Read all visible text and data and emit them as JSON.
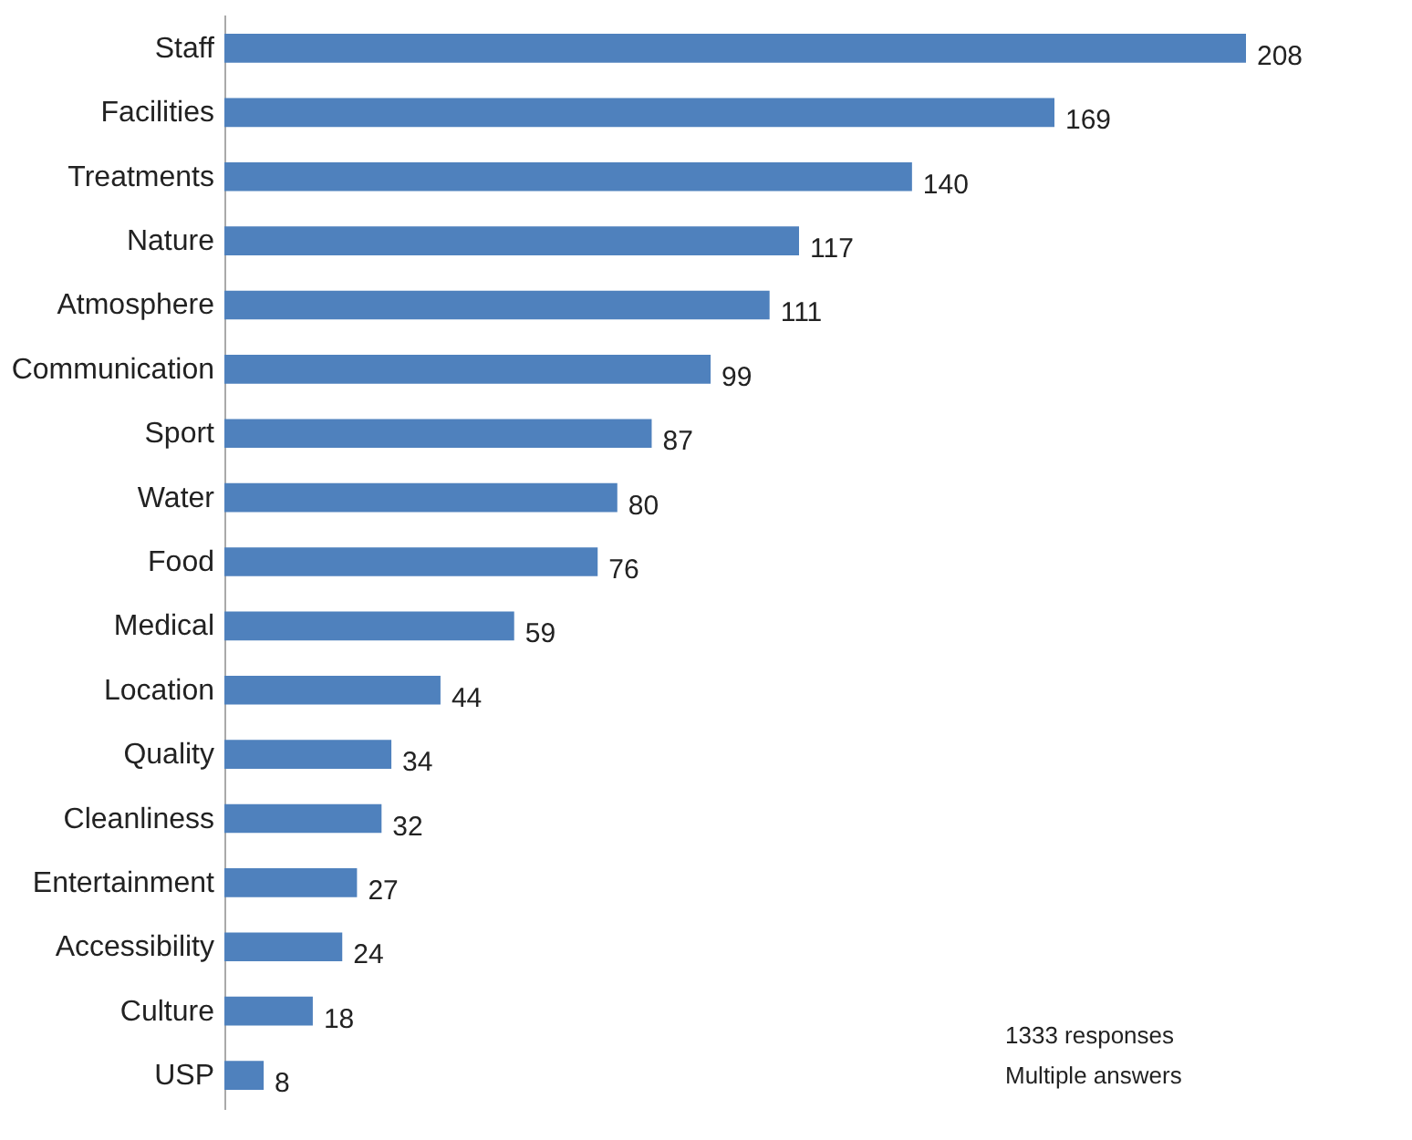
{
  "chart_data": {
    "type": "bar",
    "orientation": "horizontal",
    "categories": [
      "Staff",
      "Facilities",
      "Treatments",
      "Nature",
      "Atmosphere",
      "Communication",
      "Sport",
      "Water",
      "Food",
      "Medical",
      "Location",
      "Quality",
      "Cleanliness",
      "Entertainment",
      "Accessibility",
      "Culture",
      "USP"
    ],
    "values": [
      208,
      169,
      140,
      117,
      111,
      99,
      87,
      80,
      76,
      59,
      44,
      34,
      32,
      27,
      24,
      18,
      8
    ],
    "color": "#4f81bd",
    "data_labels": true,
    "annotations": [
      "1333 responses",
      "Multiple answers"
    ]
  }
}
